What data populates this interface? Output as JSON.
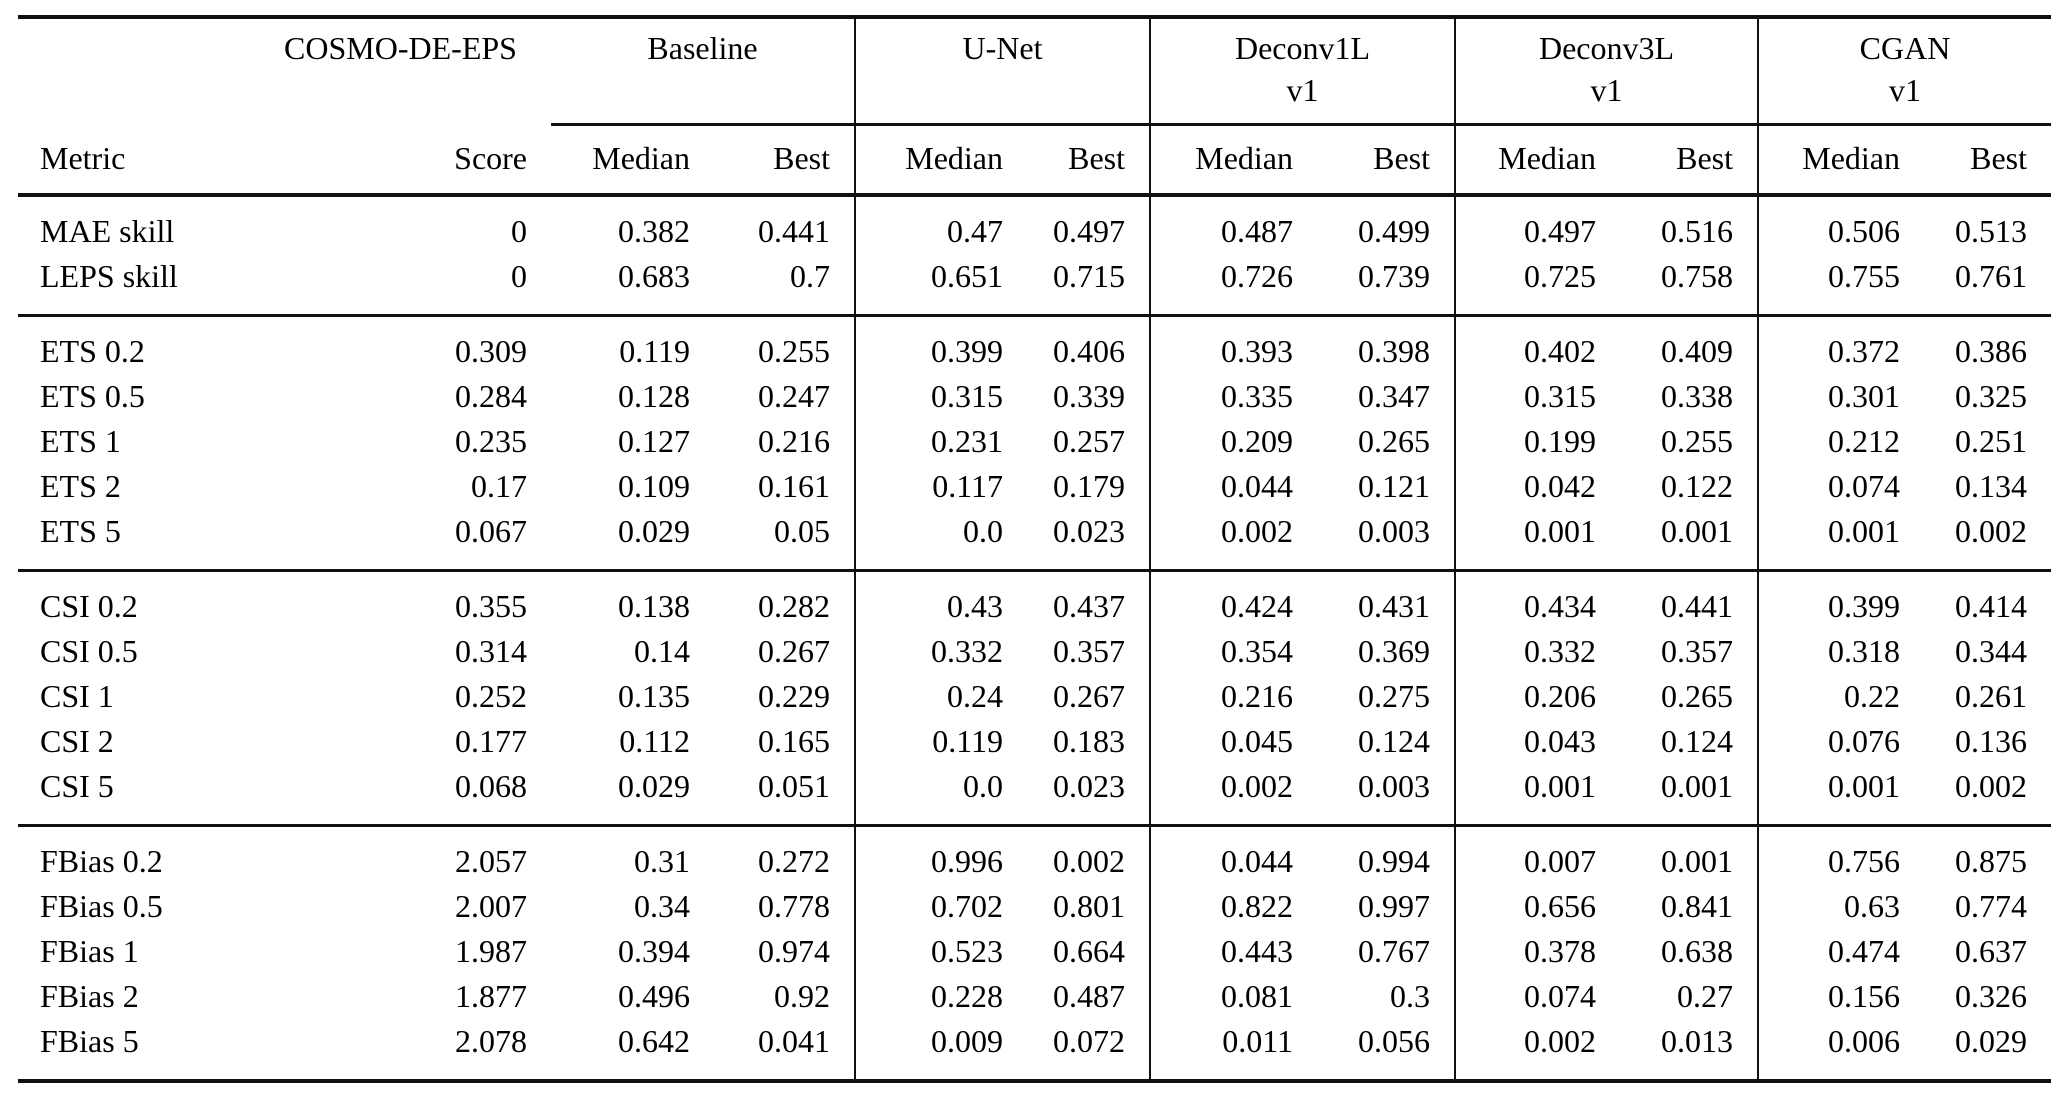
{
  "table": {
    "metric_header": "Metric",
    "col_groups": [
      {
        "label": "COSMO-DE-EPS",
        "sub": "",
        "cols": [
          "Score"
        ]
      },
      {
        "label": "Baseline",
        "sub": "",
        "cols": [
          "Median",
          "Best"
        ]
      },
      {
        "label": "U-Net",
        "sub": "",
        "cols": [
          "Median",
          "Best"
        ]
      },
      {
        "label": "Deconv1L",
        "sub": "v1",
        "cols": [
          "Median",
          "Best"
        ]
      },
      {
        "label": "Deconv3L",
        "sub": "v1",
        "cols": [
          "Median",
          "Best"
        ]
      },
      {
        "label": "CGAN",
        "sub": "v1",
        "cols": [
          "Median",
          "Best"
        ]
      }
    ],
    "sections": [
      {
        "name": "skill",
        "rows": [
          {
            "metric": "MAE skill",
            "values": [
              "0",
              "0.382",
              "0.441",
              "0.47",
              "0.497",
              "0.487",
              "0.499",
              "0.497",
              "0.516",
              "0.506",
              "0.513"
            ]
          },
          {
            "metric": "LEPS skill",
            "values": [
              "0",
              "0.683",
              "0.7",
              "0.651",
              "0.715",
              "0.726",
              "0.739",
              "0.725",
              "0.758",
              "0.755",
              "0.761"
            ]
          }
        ]
      },
      {
        "name": "ets",
        "rows": [
          {
            "metric": "ETS 0.2",
            "values": [
              "0.309",
              "0.119",
              "0.255",
              "0.399",
              "0.406",
              "0.393",
              "0.398",
              "0.402",
              "0.409",
              "0.372",
              "0.386"
            ]
          },
          {
            "metric": "ETS 0.5",
            "values": [
              "0.284",
              "0.128",
              "0.247",
              "0.315",
              "0.339",
              "0.335",
              "0.347",
              "0.315",
              "0.338",
              "0.301",
              "0.325"
            ]
          },
          {
            "metric": "ETS 1",
            "values": [
              "0.235",
              "0.127",
              "0.216",
              "0.231",
              "0.257",
              "0.209",
              "0.265",
              "0.199",
              "0.255",
              "0.212",
              "0.251"
            ]
          },
          {
            "metric": "ETS 2",
            "values": [
              "0.17",
              "0.109",
              "0.161",
              "0.117",
              "0.179",
              "0.044",
              "0.121",
              "0.042",
              "0.122",
              "0.074",
              "0.134"
            ]
          },
          {
            "metric": "ETS 5",
            "values": [
              "0.067",
              "0.029",
              "0.05",
              "0.0",
              "0.023",
              "0.002",
              "0.003",
              "0.001",
              "0.001",
              "0.001",
              "0.002"
            ]
          }
        ]
      },
      {
        "name": "csi",
        "rows": [
          {
            "metric": "CSI 0.2",
            "values": [
              "0.355",
              "0.138",
              "0.282",
              "0.43",
              "0.437",
              "0.424",
              "0.431",
              "0.434",
              "0.441",
              "0.399",
              "0.414"
            ]
          },
          {
            "metric": "CSI 0.5",
            "values": [
              "0.314",
              "0.14",
              "0.267",
              "0.332",
              "0.357",
              "0.354",
              "0.369",
              "0.332",
              "0.357",
              "0.318",
              "0.344"
            ]
          },
          {
            "metric": "CSI 1",
            "values": [
              "0.252",
              "0.135",
              "0.229",
              "0.24",
              "0.267",
              "0.216",
              "0.275",
              "0.206",
              "0.265",
              "0.22",
              "0.261"
            ]
          },
          {
            "metric": "CSI 2",
            "values": [
              "0.177",
              "0.112",
              "0.165",
              "0.119",
              "0.183",
              "0.045",
              "0.124",
              "0.043",
              "0.124",
              "0.076",
              "0.136"
            ]
          },
          {
            "metric": "CSI 5",
            "values": [
              "0.068",
              "0.029",
              "0.051",
              "0.0",
              "0.023",
              "0.002",
              "0.003",
              "0.001",
              "0.001",
              "0.001",
              "0.002"
            ]
          }
        ]
      },
      {
        "name": "fbias",
        "rows": [
          {
            "metric": "FBias 0.2",
            "values": [
              "2.057",
              "0.31",
              "0.272",
              "0.996",
              "0.002",
              "0.044",
              "0.994",
              "0.007",
              "0.001",
              "0.756",
              "0.875"
            ]
          },
          {
            "metric": "FBias 0.5",
            "values": [
              "2.007",
              "0.34",
              "0.778",
              "0.702",
              "0.801",
              "0.822",
              "0.997",
              "0.656",
              "0.841",
              "0.63",
              "0.774"
            ]
          },
          {
            "metric": "FBias 1",
            "values": [
              "1.987",
              "0.394",
              "0.974",
              "0.523",
              "0.664",
              "0.443",
              "0.767",
              "0.378",
              "0.638",
              "0.474",
              "0.637"
            ]
          },
          {
            "metric": "FBias 2",
            "values": [
              "1.877",
              "0.496",
              "0.92",
              "0.228",
              "0.487",
              "0.081",
              "0.3",
              "0.074",
              "0.27",
              "0.156",
              "0.326"
            ]
          },
          {
            "metric": "FBias 5",
            "values": [
              "2.078",
              "0.642",
              "0.041",
              "0.009",
              "0.072",
              "0.011",
              "0.056",
              "0.002",
              "0.013",
              "0.006",
              "0.029"
            ]
          }
        ]
      }
    ]
  }
}
